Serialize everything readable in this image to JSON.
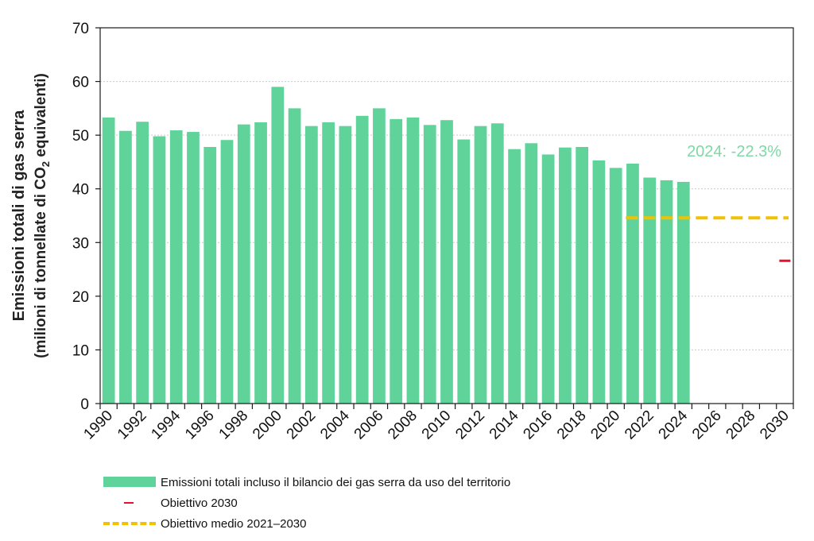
{
  "chart_data": {
    "type": "bar",
    "ylabel_line1": "Emissioni  totali di gas serra",
    "ylabel_line2_prefix": "(milioni di tonnellate di CO",
    "ylabel_line2_sub": "2",
    "ylabel_line2_suffix": " equivalenti)",
    "ylim": [
      0,
      70
    ],
    "yticks": [
      "0",
      "10",
      "20",
      "30",
      "40",
      "50",
      "60",
      "70"
    ],
    "xlim": [
      1990,
      2030
    ],
    "xticks": [
      "1990",
      "1992",
      "1994",
      "1996",
      "1998",
      "2000",
      "2002",
      "2004",
      "2006",
      "2008",
      "2010",
      "2012",
      "2014",
      "2016",
      "2018",
      "2020",
      "2022",
      "2024",
      "2026",
      "2028",
      "2030"
    ],
    "grid": "horizontal",
    "series": [
      {
        "name": "Emissioni totali incluso il bilancio dei gas serra da uso del territorio",
        "x": [
          1990,
          1991,
          1992,
          1993,
          1994,
          1995,
          1996,
          1997,
          1998,
          1999,
          2000,
          2001,
          2002,
          2003,
          2004,
          2005,
          2006,
          2007,
          2008,
          2009,
          2010,
          2011,
          2012,
          2013,
          2014,
          2015,
          2016,
          2017,
          2018,
          2019,
          2020,
          2021,
          2022,
          2023,
          2024
        ],
        "values": [
          53.3,
          50.8,
          52.5,
          49.8,
          50.9,
          50.6,
          47.8,
          49.1,
          52.0,
          52.4,
          59.0,
          55.0,
          51.7,
          52.4,
          51.7,
          53.6,
          55.0,
          53.0,
          53.3,
          51.9,
          52.8,
          49.2,
          51.7,
          52.2,
          47.4,
          48.5,
          46.4,
          47.7,
          47.8,
          45.3,
          43.9,
          44.7,
          42.1,
          41.6,
          41.3
        ],
        "color": "#5fd39a"
      },
      {
        "name": "Obiettivo 2030",
        "x": [
          2030
        ],
        "values": [
          26.6
        ],
        "color": "#e8102c"
      },
      {
        "name": "Obiettivo medio 2021–2030",
        "x_range": [
          2021,
          2030
        ],
        "value": 34.6,
        "color": "#f2c200"
      }
    ],
    "annotation": {
      "text": "2024: -22.3%",
      "x": 2027.5,
      "y": 46,
      "color": "#7ed9a5"
    },
    "legend_placement": "bottom"
  }
}
